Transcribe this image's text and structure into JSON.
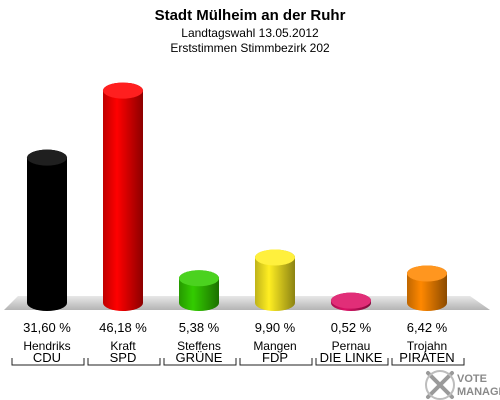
{
  "chart_data": {
    "type": "bar",
    "title": "Stadt Mülheim an der Ruhr",
    "subtitle": "Landtagswahl 13.05.2012",
    "subtitle2": "Erststimmen Stimmbezirk 202",
    "categories": [
      "CDU",
      "SPD",
      "GRÜNE",
      "FDP",
      "DIE LINKE",
      "PIRATEN"
    ],
    "candidates": [
      "Hendriks",
      "Kraft",
      "Steffens",
      "Mangen",
      "Pernau",
      "Trojahn"
    ],
    "values": [
      31.6,
      46.18,
      5.38,
      9.9,
      0.52,
      6.42
    ],
    "value_labels": [
      "31,60 %",
      "46,18 %",
      "5,38 %",
      "9,90 %",
      "0,52 %",
      "6,42 %"
    ],
    "colors": [
      "#000000",
      "#ff0000",
      "#33cc00",
      "#ffee22",
      "#dd1166",
      "#ff8800"
    ],
    "ylim": [
      0,
      50
    ],
    "grid": false,
    "legend": "none"
  },
  "logo": {
    "line1": "VOTE",
    "line2": "MANAGER"
  }
}
